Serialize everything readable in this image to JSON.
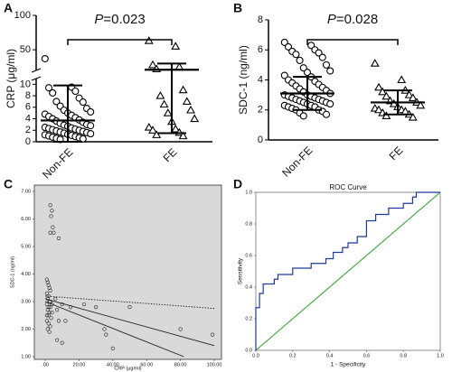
{
  "chart_data": [
    {
      "type": "strip",
      "label": "A",
      "ylabel": "CRP (μg/ml)",
      "annotation": "P=0.023",
      "categories": [
        "Non-FE",
        "FE"
      ],
      "series": [
        {
          "marker": "circle",
          "values": [
            37,
            9.5,
            9.4,
            8.8,
            8.5,
            7.6,
            7.0,
            6.9,
            6.2,
            5.8,
            5.5,
            5.2,
            5.0,
            4.8,
            4.6,
            4.4,
            4.2,
            4.0,
            3.8,
            3.6,
            3.4,
            3.2,
            3.0,
            2.9,
            2.8,
            2.7,
            2.5,
            2.4,
            2.3,
            2.2,
            2.1,
            2.0,
            1.9,
            1.8,
            1.7,
            1.6,
            1.5,
            1.4,
            1.3,
            1.2,
            1.1,
            1.0,
            0.9,
            0.8,
            0.7,
            0.6,
            0.5,
            0.4
          ]
        },
        {
          "marker": "triangle",
          "values": [
            63,
            55,
            28,
            25,
            22,
            9.0,
            8.0,
            7.0,
            6.5,
            5.5,
            5.0,
            4.0,
            3.5,
            2.5,
            2.2,
            2.0,
            1.6,
            1.2,
            1.0
          ]
        }
      ],
      "means": [
        3.7,
        21
      ],
      "sd": [
        [
          0,
          9.8
        ],
        [
          1.5,
          30
        ]
      ],
      "ylim": [
        0,
        100
      ],
      "ybreak": [
        11,
        20
      ],
      "yticks": [
        0,
        2,
        4,
        6,
        8,
        10,
        50,
        100
      ]
    },
    {
      "type": "strip",
      "label": "B",
      "ylabel": "SDC-1 (ng/ml)",
      "annotation": "P=0.028",
      "categories": [
        "Non-FE",
        "FE"
      ],
      "series": [
        {
          "marker": "circle",
          "values": [
            6.5,
            6.3,
            6.2,
            6.0,
            5.9,
            5.8,
            5.7,
            5.5,
            5.3,
            5.0,
            4.8,
            4.6,
            4.5,
            4.3,
            4.2,
            4.0,
            3.9,
            3.8,
            3.7,
            3.6,
            3.5,
            3.4,
            3.3,
            3.2,
            3.1,
            3.0,
            3.0,
            2.9,
            2.9,
            2.8,
            2.8,
            2.7,
            2.7,
            2.6,
            2.6,
            2.5,
            2.5,
            2.4,
            2.4,
            2.3,
            2.3,
            2.2,
            2.2,
            2.1,
            2.0,
            2.0,
            1.9,
            1.8,
            1.7,
            1.6
          ]
        },
        {
          "marker": "triangle",
          "values": [
            5.1,
            4.0,
            3.5,
            3.3,
            3.2,
            3.0,
            2.9,
            2.8,
            2.6,
            2.5,
            2.4,
            2.3,
            2.2,
            2.1,
            2.0,
            2.0,
            1.9,
            1.8,
            1.7,
            1.6,
            1.5
          ]
        }
      ],
      "means": [
        3.1,
        2.5
      ],
      "sd": [
        [
          2.0,
          4.2
        ],
        [
          1.7,
          3.3
        ]
      ],
      "ylim": [
        0,
        8
      ],
      "yticks": [
        0,
        2,
        4,
        6,
        8
      ]
    },
    {
      "type": "scatter",
      "label": "C",
      "xlabel": "CRP (μg/ml)",
      "ylabel": "SDC-1 (ng/ml)",
      "background": "#d9d9d9",
      "points": {
        "x": [
          3,
          4,
          3.5,
          4.5,
          3,
          5,
          8,
          1,
          1.5,
          2,
          2.5,
          3,
          1,
          2,
          1.5,
          2.5,
          3,
          4,
          1,
          2,
          3,
          1.5,
          2.5,
          1,
          2,
          3.5,
          1,
          2,
          3,
          1.5,
          2.5,
          4,
          6,
          7,
          8,
          10,
          15,
          23,
          30,
          35,
          36,
          40,
          50,
          80,
          99,
          12,
          10,
          7
        ],
        "y": [
          6.5,
          6.3,
          6.1,
          5.7,
          5.5,
          5.5,
          5.3,
          3.8,
          3.7,
          3.6,
          3.5,
          3.4,
          3.3,
          3.2,
          3.1,
          3.0,
          3.0,
          2.9,
          2.9,
          2.8,
          2.8,
          2.7,
          2.6,
          2.5,
          2.5,
          2.4,
          2.3,
          2.2,
          2.1,
          2.0,
          1.9,
          2.6,
          3.1,
          2.7,
          2.3,
          2.9,
          2.8,
          2.9,
          2.8,
          2.0,
          1.8,
          1.3,
          2.8,
          2.0,
          1.8,
          2.3,
          1.5,
          1.6
        ]
      },
      "fit_lines": [
        {
          "dash": false,
          "x": [
            0,
            100
          ],
          "y": [
            3.1,
            1.4
          ]
        },
        {
          "dash": true,
          "x": [
            0,
            100
          ],
          "y": [
            3.2,
            2.75
          ]
        },
        {
          "dash": false,
          "x": [
            0,
            82
          ],
          "y": [
            3.0,
            1.0
          ]
        }
      ],
      "xlim": [
        0,
        100
      ],
      "ylim": [
        1,
        7
      ],
      "xticks": [
        {
          "value": 0,
          "label": ".00"
        },
        {
          "value": 20,
          "label": "20.00"
        },
        {
          "value": 40,
          "label": "40.00"
        },
        {
          "value": 60,
          "label": "60.00"
        },
        {
          "value": 80,
          "label": "80.00"
        },
        {
          "value": 100,
          "label": "100.00"
        }
      ],
      "yticks": [
        {
          "value": 1,
          "label": "1.00"
        },
        {
          "value": 2,
          "label": "2.00"
        },
        {
          "value": 3,
          "label": "3.00"
        },
        {
          "value": 4,
          "label": "4.00"
        },
        {
          "value": 5,
          "label": "5.00"
        },
        {
          "value": 6,
          "label": "6.00"
        },
        {
          "value": 7,
          "label": "7.00"
        }
      ]
    },
    {
      "type": "line",
      "label": "D",
      "title": "ROC Curve",
      "xlabel": "1 - Specificity",
      "ylabel": "Sensitivity",
      "curve": {
        "color": "#1f3a9a",
        "x": [
          0,
          0,
          0.02,
          0.02,
          0.04,
          0.04,
          0.1,
          0.1,
          0.12,
          0.12,
          0.2,
          0.2,
          0.3,
          0.3,
          0.38,
          0.38,
          0.42,
          0.42,
          0.47,
          0.47,
          0.5,
          0.5,
          0.55,
          0.55,
          0.6,
          0.6,
          0.65,
          0.65,
          0.72,
          0.72,
          0.8,
          0.8,
          0.85,
          0.85,
          0.87,
          0.87,
          1
        ],
        "y": [
          0,
          0.27,
          0.27,
          0.36,
          0.36,
          0.42,
          0.42,
          0.45,
          0.45,
          0.48,
          0.48,
          0.52,
          0.52,
          0.55,
          0.55,
          0.58,
          0.58,
          0.62,
          0.62,
          0.65,
          0.65,
          0.68,
          0.68,
          0.72,
          0.72,
          0.82,
          0.82,
          0.86,
          0.86,
          0.9,
          0.9,
          0.93,
          0.93,
          0.97,
          0.97,
          1,
          1
        ]
      },
      "reference": {
        "color": "#2ca02c",
        "x": [
          0,
          1
        ],
        "y": [
          0,
          1
        ]
      },
      "xlim": [
        0,
        1
      ],
      "ylim": [
        0,
        1
      ],
      "xticks": [
        {
          "value": 0,
          "label": "0.0"
        },
        {
          "value": 0.2,
          "label": "0.2"
        },
        {
          "value": 0.4,
          "label": "0.4"
        },
        {
          "value": 0.6,
          "label": "0.6"
        },
        {
          "value": 0.8,
          "label": "0.8"
        },
        {
          "value": 1,
          "label": "1.0"
        }
      ],
      "yticks": [
        {
          "value": 0,
          "label": "0.0"
        },
        {
          "value": 0.2,
          "label": "0.2"
        },
        {
          "value": 0.4,
          "label": "0.4"
        },
        {
          "value": 0.6,
          "label": "0.6"
        },
        {
          "value": 0.8,
          "label": "0.8"
        },
        {
          "value": 1,
          "label": "1.0"
        }
      ]
    }
  ]
}
